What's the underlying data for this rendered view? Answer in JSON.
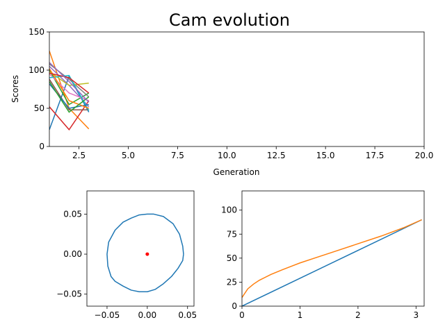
{
  "title": "Cam evolution",
  "colors": [
    "#1f77b4",
    "#ff7f0e",
    "#2ca02c",
    "#d62728",
    "#9467bd",
    "#8c564b",
    "#e377c2",
    "#7f7f7f",
    "#bcbd22",
    "#17becf"
  ],
  "chart_data": [
    {
      "type": "line",
      "name": "scores",
      "xlabel": "Generation",
      "ylabel": "Scores",
      "xlim": [
        1,
        20
      ],
      "ylim": [
        0,
        150
      ],
      "xticks": [
        "2.5",
        "5.0",
        "7.5",
        "10.0",
        "12.5",
        "15.0",
        "17.5",
        "20.0"
      ],
      "xtick_values": [
        2.5,
        5,
        7.5,
        10,
        12.5,
        15,
        17.5,
        20
      ],
      "yticks": [
        "0",
        "50",
        "100",
        "150"
      ],
      "ytick_values": [
        0,
        50,
        100,
        150
      ],
      "x": [
        1,
        2,
        3
      ],
      "series": [
        {
          "values": [
            22,
            92,
            45
          ]
        },
        {
          "values": [
            125,
            50,
            23
          ]
        },
        {
          "values": [
            100,
            55,
            70
          ]
        },
        {
          "values": [
            52,
            22,
            60
          ]
        },
        {
          "values": [
            105,
            80,
            52
          ]
        },
        {
          "values": [
            88,
            48,
            48
          ]
        },
        {
          "values": [
            95,
            70,
            60
          ]
        },
        {
          "values": [
            108,
            88,
            65
          ]
        },
        {
          "values": [
            98,
            80,
            83
          ]
        },
        {
          "values": [
            90,
            93,
            47
          ]
        },
        {
          "values": [
            82,
            50,
            55
          ]
        },
        {
          "values": [
            102,
            60,
            50
          ]
        },
        {
          "values": [
            85,
            45,
            65
          ]
        },
        {
          "values": [
            96,
            90,
            70
          ]
        },
        {
          "values": [
            110,
            85,
            58
          ]
        }
      ]
    },
    {
      "type": "line",
      "name": "cam-profile",
      "xlim": [
        -0.075,
        0.058
      ],
      "ylim": [
        -0.065,
        0.079
      ],
      "xticks": [
        "−0.05",
        "0.00",
        "0.05"
      ],
      "xtick_values": [
        -0.05,
        0,
        0.05
      ],
      "yticks": [
        "−0.05",
        "0.00",
        "0.05"
      ],
      "ytick_values": [
        -0.05,
        0,
        0.05
      ],
      "center_point": [
        0,
        0
      ],
      "profile": {
        "x": [
          0.045,
          0.044,
          0.04,
          0.032,
          0.02,
          0.008,
          0.0,
          -0.01,
          -0.02,
          -0.03,
          -0.04,
          -0.048,
          -0.05,
          -0.049,
          -0.045,
          -0.04,
          -0.03,
          -0.02,
          -0.01,
          0.0,
          0.01,
          0.02,
          0.03,
          0.038,
          0.044,
          0.045
        ],
        "y": [
          0.0,
          0.01,
          0.025,
          0.038,
          0.047,
          0.05,
          0.05,
          0.049,
          0.045,
          0.04,
          0.03,
          0.015,
          0.0,
          -0.015,
          -0.028,
          -0.034,
          -0.04,
          -0.045,
          -0.047,
          -0.047,
          -0.044,
          -0.037,
          -0.028,
          -0.018,
          -0.008,
          0.0
        ]
      }
    },
    {
      "type": "line",
      "name": "cam-curves",
      "xlim": [
        0,
        3.14
      ],
      "ylim": [
        0,
        120
      ],
      "xticks": [
        "0",
        "1",
        "2",
        "3"
      ],
      "xtick_values": [
        0,
        1,
        2,
        3
      ],
      "yticks": [
        "0",
        "25",
        "50",
        "75",
        "100"
      ],
      "ytick_values": [
        0,
        25,
        50,
        75,
        100
      ],
      "series": [
        {
          "x": [
            0,
            3.1
          ],
          "values": [
            0,
            90
          ]
        },
        {
          "x": [
            0,
            0.1,
            0.2,
            0.3,
            0.5,
            0.7,
            1.0,
            1.3,
            1.6,
            2.0,
            2.4,
            2.8,
            3.1
          ],
          "values": [
            9,
            18,
            23,
            27,
            33,
            38,
            45,
            51,
            57,
            65,
            73,
            82,
            90
          ]
        }
      ]
    }
  ]
}
